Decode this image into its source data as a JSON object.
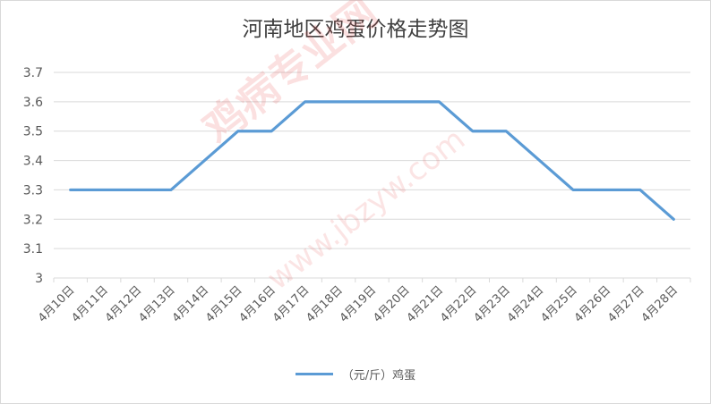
{
  "chart_data": {
    "type": "line",
    "title": "河南地区鸡蛋价格走势图",
    "categories": [
      "4月10日",
      "4月11日",
      "4月12日",
      "4月13日",
      "4月14日",
      "4月15日",
      "4月16日",
      "4月17日",
      "4月18日",
      "4月19日",
      "4月20日",
      "4月21日",
      "4月22日",
      "4月23日",
      "4月24日",
      "4月25日",
      "4月26日",
      "4月27日",
      "4月28日"
    ],
    "series": [
      {
        "name": "（元/斤）鸡蛋",
        "values": [
          3.3,
          3.3,
          3.3,
          3.3,
          3.4,
          3.5,
          3.5,
          3.6,
          3.6,
          3.6,
          3.6,
          3.6,
          3.5,
          3.5,
          3.4,
          3.3,
          3.3,
          3.3,
          3.2
        ],
        "color": "#5b9bd5"
      }
    ],
    "ylim": [
      3,
      3.7
    ],
    "yticks": [
      "3",
      "3.1",
      "3.2",
      "3.3",
      "3.4",
      "3.5",
      "3.6",
      "3.7"
    ],
    "xlabel": "",
    "ylabel": "",
    "grid": true,
    "legend_position": "bottom"
  },
  "watermark": {
    "text": "鸡病专业网",
    "url": "www.jbzyw.com"
  }
}
